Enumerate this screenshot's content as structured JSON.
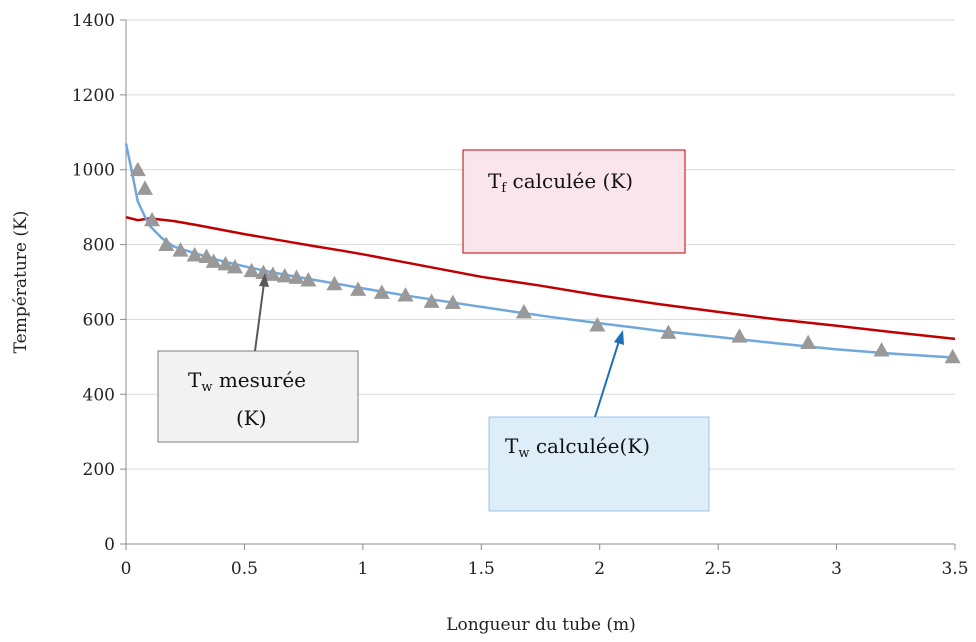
{
  "chart_data": {
    "type": "line",
    "xlabel": "Longueur du tube (m)",
    "ylabel": "Température (K)",
    "xlim": [
      0,
      3.5
    ],
    "ylim": [
      0,
      1400
    ],
    "x_ticks": [
      "0",
      "0.5",
      "1",
      "1.5",
      "2",
      "2.5",
      "3",
      "3.5"
    ],
    "y_ticks": [
      "0",
      "200",
      "400",
      "600",
      "800",
      "1000",
      "1200",
      "1400"
    ],
    "grid": "horizontal",
    "series": [
      {
        "kind": "line",
        "color": "#c00000",
        "x": [
          0,
          0.05,
          0.1,
          0.2,
          0.3,
          0.4,
          0.5,
          0.6,
          0.7,
          0.8,
          0.9,
          1.0,
          1.1,
          1.2,
          1.3,
          1.4,
          1.5,
          1.75,
          2.0,
          2.25,
          2.5,
          2.75,
          3.0,
          3.25,
          3.5
        ],
        "y": [
          873,
          865,
          870,
          863,
          852,
          840,
          828,
          817,
          806,
          795,
          785,
          774,
          762,
          750,
          738,
          726,
          714,
          690,
          664,
          641,
          620,
          600,
          583,
          565,
          548
        ]
      },
      {
        "kind": "line",
        "color": "#6fa8dc",
        "x": [
          0,
          0.02,
          0.05,
          0.08,
          0.1,
          0.15,
          0.2,
          0.3,
          0.4,
          0.5,
          0.6,
          0.7,
          0.8,
          0.9,
          1.0,
          1.2,
          1.4,
          1.6,
          1.8,
          2.0,
          2.25,
          2.5,
          2.75,
          3.0,
          3.25,
          3.5
        ],
        "y": [
          1070,
          1010,
          915,
          875,
          850,
          818,
          795,
          775,
          757,
          742,
          728,
          716,
          705,
          694,
          683,
          662,
          643,
          624,
          606,
          590,
          570,
          553,
          536,
          520,
          508,
          498
        ]
      },
      {
        "kind": "scatter",
        "color": "#999999",
        "x": [
          0.05,
          0.08,
          0.11,
          0.17,
          0.23,
          0.29,
          0.34,
          0.37,
          0.42,
          0.46,
          0.53,
          0.58,
          0.62,
          0.67,
          0.72,
          0.77,
          0.88,
          0.98,
          1.08,
          1.18,
          1.29,
          1.38,
          1.68,
          1.99,
          2.29,
          2.59,
          2.88,
          3.19,
          3.49
        ],
        "y": [
          1000,
          950,
          866,
          800,
          785,
          772,
          768,
          755,
          748,
          740,
          730,
          725,
          720,
          716,
          712,
          705,
          695,
          680,
          672,
          665,
          648,
          645,
          620,
          585,
          565,
          555,
          538,
          518,
          500
        ]
      }
    ],
    "annotations": [
      {
        "main": "T",
        "sub": "f",
        "rest": " calculée (K)"
      },
      {
        "main": "T",
        "sub": "w",
        "rest": " mesurée",
        "line2": "(K)"
      },
      {
        "main": "T",
        "sub": "w",
        "rest": " calculée(K)"
      }
    ]
  }
}
